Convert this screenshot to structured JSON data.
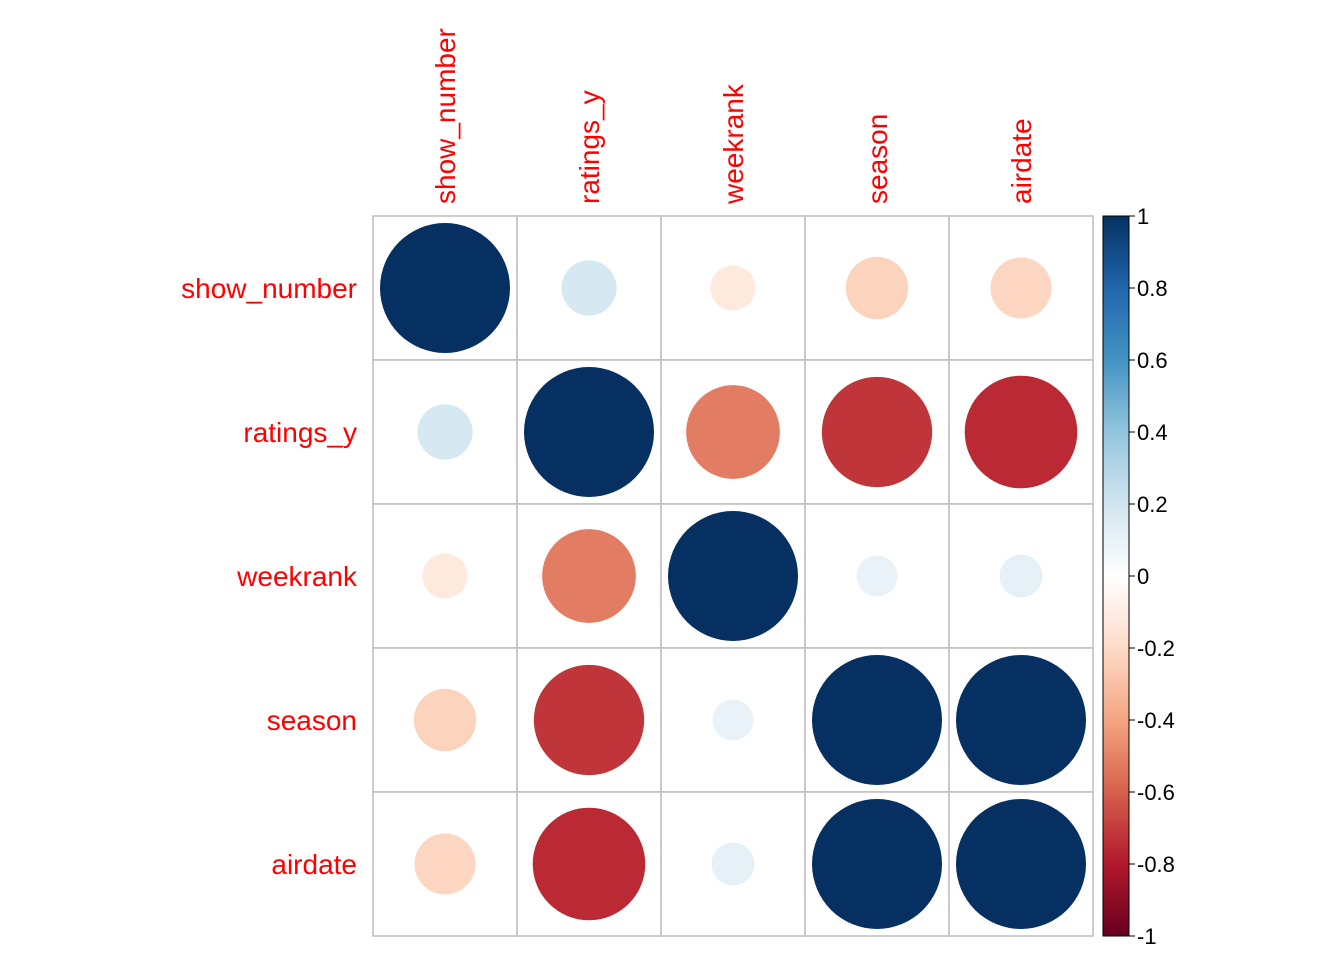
{
  "chart_data": {
    "type": "heatmap",
    "title": "",
    "variables": [
      "show_number",
      "ratings_y",
      "weekrank",
      "season",
      "airdate"
    ],
    "matrix": [
      [
        1.0,
        0.18,
        -0.12,
        -0.23,
        -0.22
      ],
      [
        0.18,
        1.0,
        -0.52,
        -0.72,
        -0.75
      ],
      [
        -0.12,
        -0.52,
        1.0,
        0.1,
        0.11
      ],
      [
        -0.23,
        -0.72,
        0.1,
        1.0,
        1.0
      ],
      [
        -0.22,
        -0.75,
        0.11,
        1.0,
        1.0
      ]
    ],
    "colorbar": {
      "min": -1,
      "max": 1,
      "ticks": [
        "1",
        "0.8",
        "0.6",
        "0.4",
        "0.2",
        "0",
        "-0.2",
        "-0.4",
        "-0.6",
        "-0.8",
        "-1"
      ]
    },
    "colors": {
      "label": "#ff0000",
      "grid": "#bebebe",
      "scale": [
        "#67001f",
        "#b2182b",
        "#d6604d",
        "#f4a582",
        "#fddbc7",
        "#ffffff",
        "#d1e5f0",
        "#92c5de",
        "#4393c3",
        "#2166ac",
        "#053061"
      ]
    }
  }
}
